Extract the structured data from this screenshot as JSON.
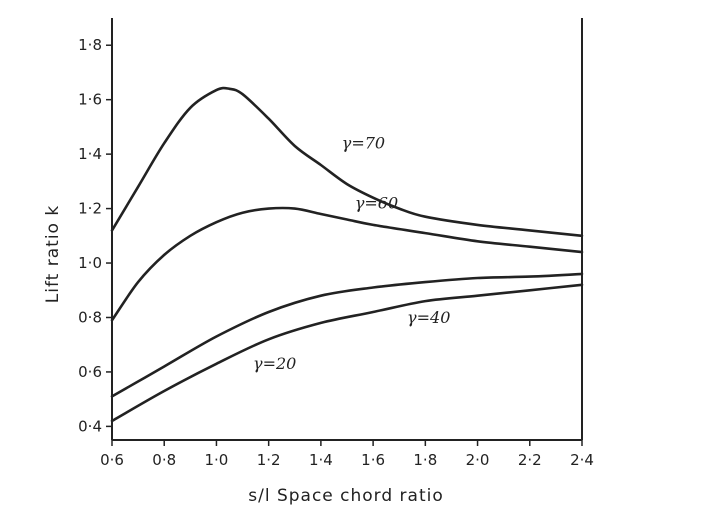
{
  "chart_data": {
    "type": "line",
    "title": "",
    "xlabel": "s/l  Space chord ratio",
    "ylabel": "Lift ratio k",
    "xlim": [
      0.6,
      2.4
    ],
    "ylim": [
      0.35,
      1.9
    ],
    "xticks": [
      "0·6",
      "0·8",
      "1·0",
      "1·2",
      "1·4",
      "1·6",
      "1·8",
      "2·0",
      "2·2",
      "2·4"
    ],
    "yticks": [
      "0·4",
      "0·6",
      "0·8",
      "1·0",
      "1·2",
      "1·4",
      "1·6",
      "1·8"
    ],
    "grid": false,
    "series": [
      {
        "name": "γ=70",
        "x": [
          0.6,
          0.7,
          0.8,
          0.9,
          1.0,
          1.05,
          1.1,
          1.2,
          1.3,
          1.4,
          1.5,
          1.6,
          1.7,
          1.8,
          2.0,
          2.2,
          2.4
        ],
        "y": [
          1.12,
          1.28,
          1.44,
          1.57,
          1.635,
          1.64,
          1.62,
          1.53,
          1.43,
          1.36,
          1.29,
          1.24,
          1.2,
          1.17,
          1.14,
          1.12,
          1.1
        ]
      },
      {
        "name": "γ=60",
        "x": [
          0.6,
          0.7,
          0.8,
          0.9,
          1.0,
          1.1,
          1.2,
          1.3,
          1.4,
          1.5,
          1.6,
          1.8,
          2.0,
          2.2,
          2.4
        ],
        "y": [
          0.79,
          0.93,
          1.03,
          1.1,
          1.15,
          1.185,
          1.2,
          1.2,
          1.18,
          1.16,
          1.14,
          1.11,
          1.08,
          1.06,
          1.04
        ]
      },
      {
        "name": "γ=40",
        "x": [
          0.6,
          0.8,
          1.0,
          1.2,
          1.4,
          1.6,
          1.8,
          2.0,
          2.2,
          2.4
        ],
        "y": [
          0.51,
          0.62,
          0.73,
          0.82,
          0.88,
          0.91,
          0.93,
          0.945,
          0.95,
          0.96
        ]
      },
      {
        "name": "γ=20",
        "x": [
          0.6,
          0.8,
          1.0,
          1.2,
          1.4,
          1.6,
          1.8,
          2.0,
          2.2,
          2.4
        ],
        "y": [
          0.42,
          0.53,
          0.63,
          0.72,
          0.78,
          0.82,
          0.86,
          0.88,
          0.9,
          0.92
        ]
      }
    ],
    "label_anchors": [
      {
        "text": "γ=70",
        "x": 1.48,
        "y": 1.42
      },
      {
        "text": "γ=60",
        "x": 1.53,
        "y": 1.2
      },
      {
        "text": "γ=40",
        "x": 1.73,
        "y": 0.78
      },
      {
        "text": "γ=20",
        "x": 1.14,
        "y": 0.61
      }
    ]
  }
}
